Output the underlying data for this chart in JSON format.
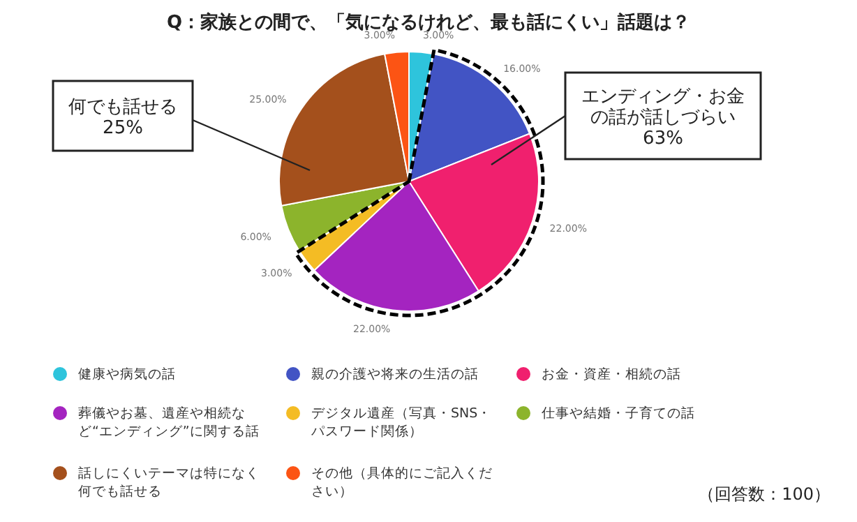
{
  "chart_data": {
    "type": "pie",
    "title": "Q：家族との間で、「気になるけれど、最も話にくい」話題は？",
    "categories": [
      "健康や病気の話",
      "親の介護や将来の生活の話",
      "お金・資産・相続の話",
      "葬儀やお墓、遺産や相続など“エンディング”に関する話",
      "デジタル遺産（写真・SNS・パスワード関係）",
      "仕事や結婚・子育ての話",
      "話しにくいテーマは特になく何でも話せる",
      "その他（具体的にご記入ください）"
    ],
    "values": [
      3,
      16,
      22,
      22,
      3,
      6,
      25,
      3
    ],
    "value_labels": [
      "3.00%",
      "16.00%",
      "22.00%",
      "22.00%",
      "3.00%",
      "6.00%",
      "25.00%",
      "3.00%"
    ],
    "colors": [
      "#2ec4dc",
      "#4254c4",
      "#f0206e",
      "#a424c0",
      "#f4bc24",
      "#8cb42c",
      "#a4501c",
      "#fc5414"
    ],
    "legend": "bottom",
    "annotations": [
      "何でも話せる",
      "25%",
      "エンディング・お金の話が話しづらい",
      "63%",
      "（回答数：100）"
    ]
  }
}
